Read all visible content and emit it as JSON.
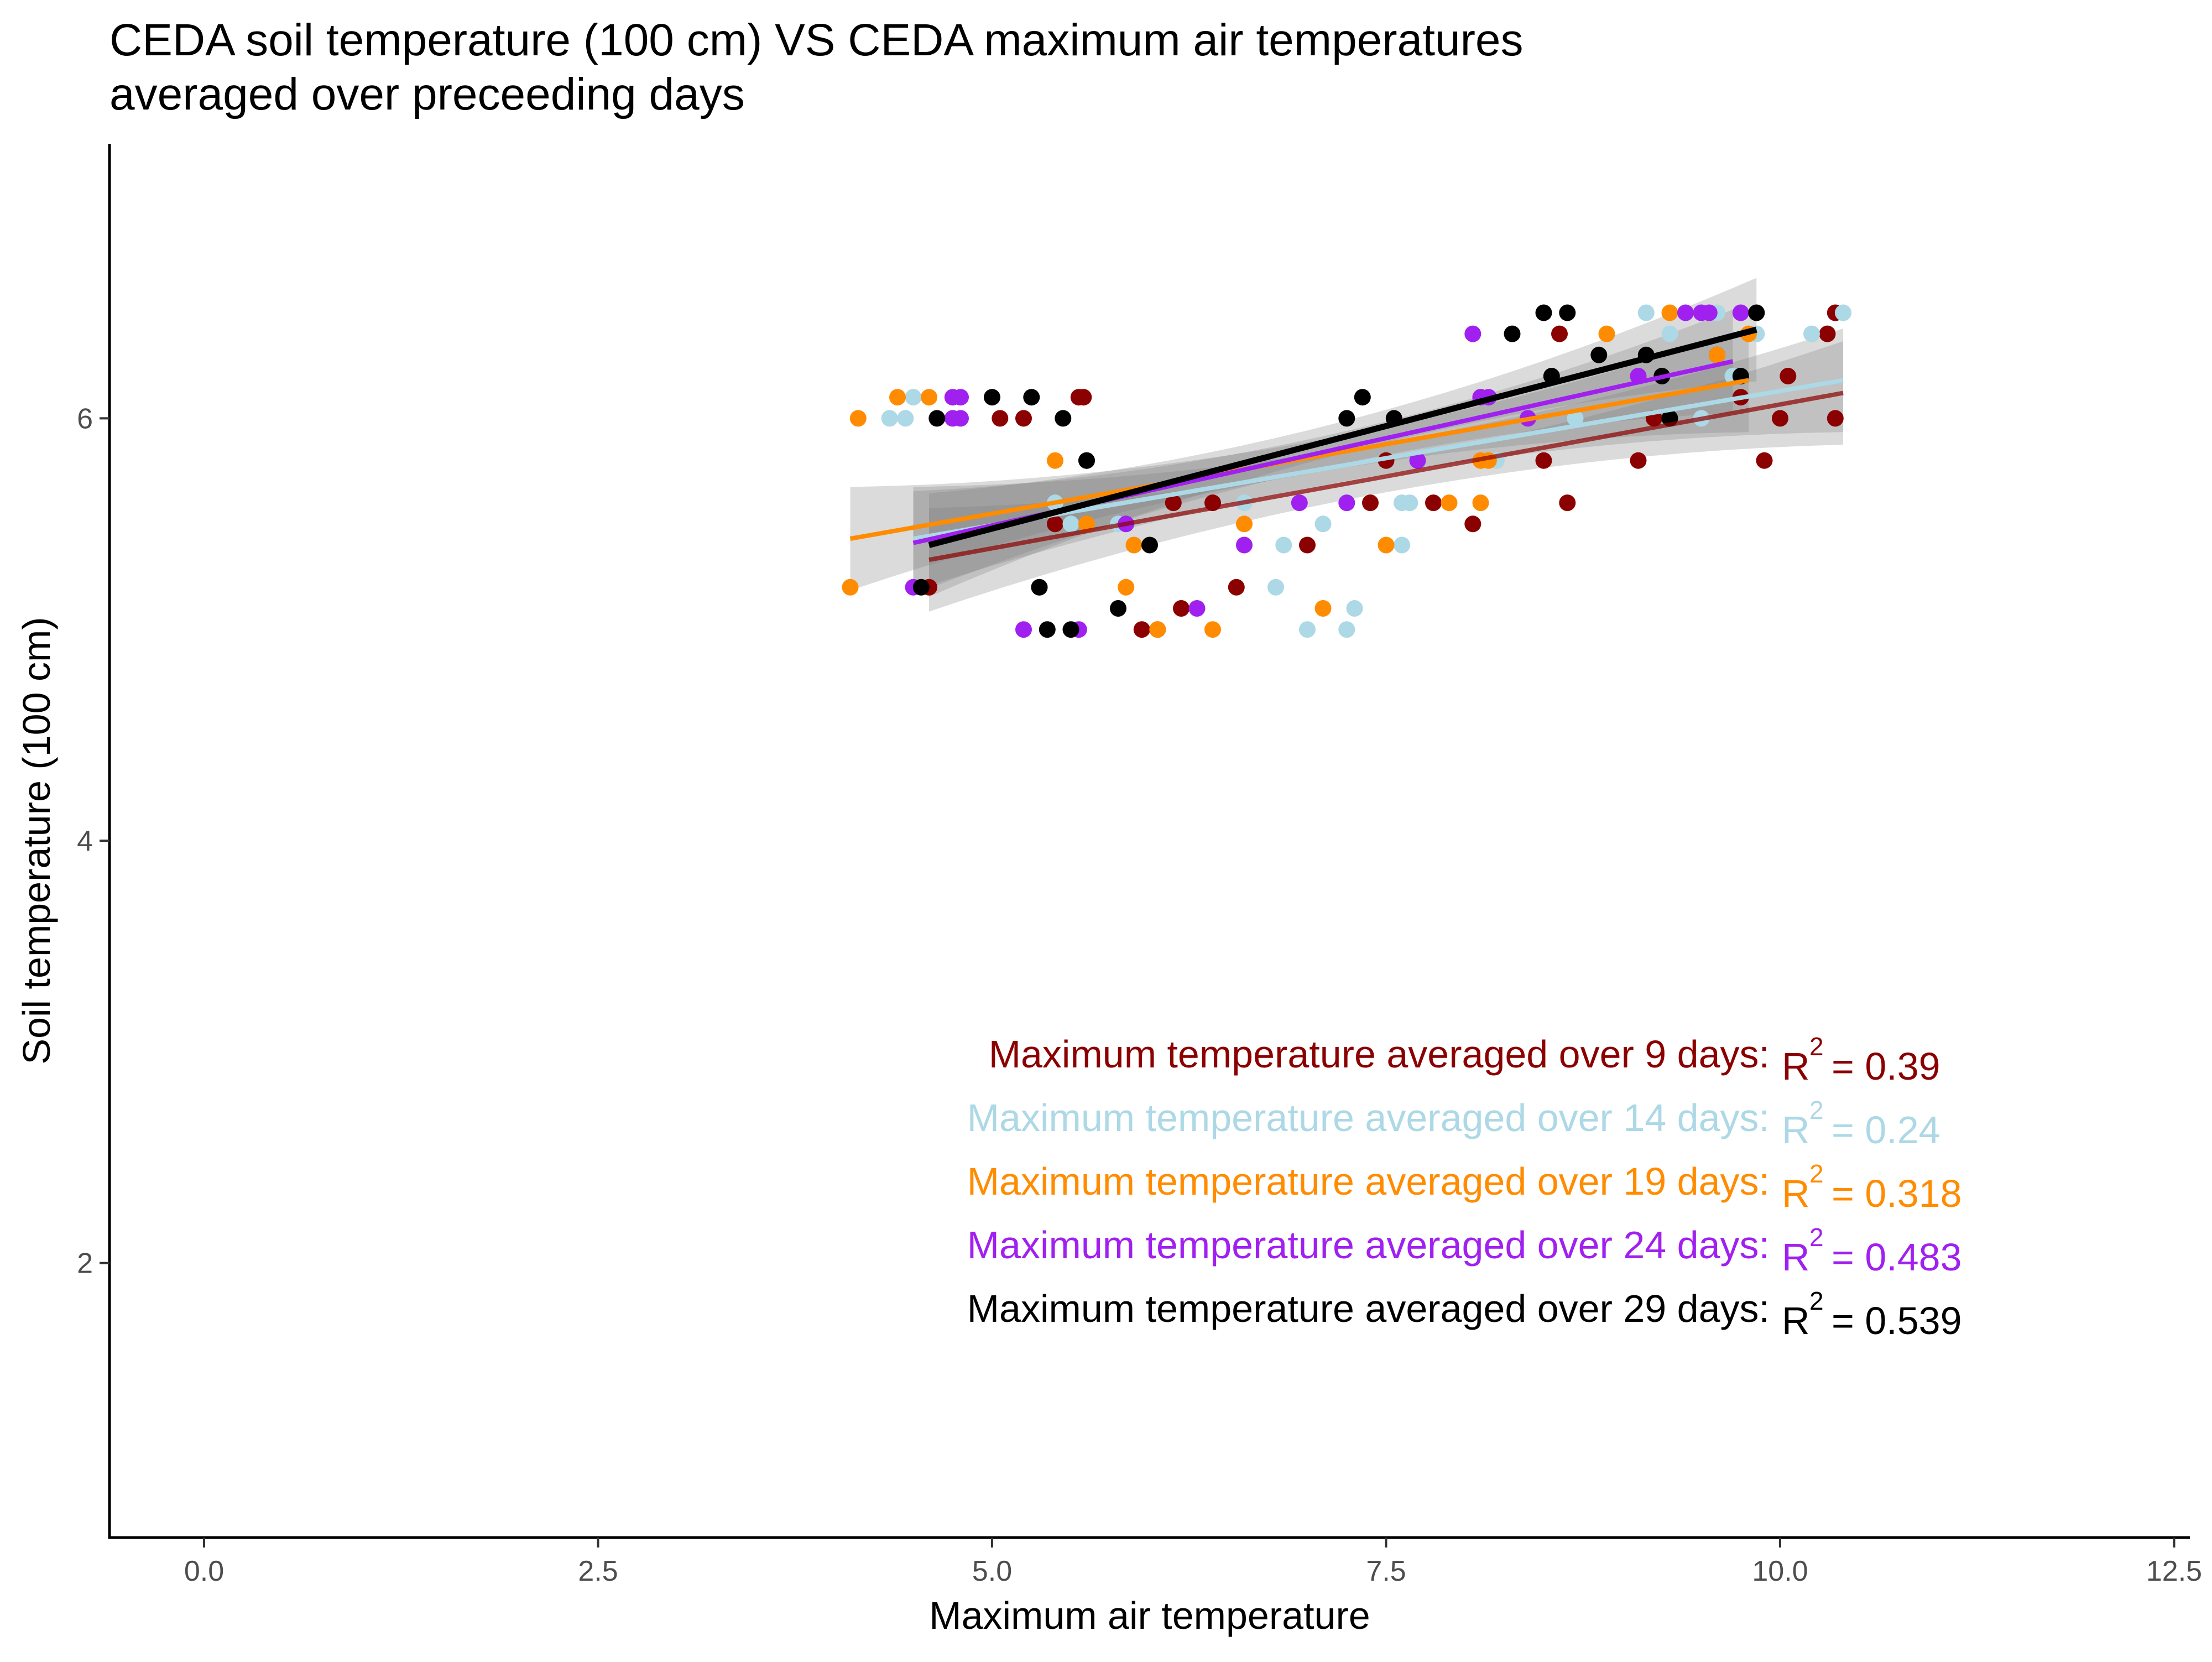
{
  "chart_data": {
    "type": "scatter",
    "title": "CEDA soil temperature (100 cm) VS CEDA maximum air temperatures",
    "subtitle": "averaged over preceeding days",
    "xlabel": "Maximum air temperature",
    "ylabel": "Soil temperature (100 cm)",
    "xlim": [
      -0.6,
      12.6
    ],
    "ylim": [
      0.7,
      7.3
    ],
    "x_ticks": [
      "0.0",
      "2.5",
      "5.0",
      "7.5",
      "10.0",
      "12.5"
    ],
    "x_tick_values": [
      0,
      2.5,
      5,
      7.5,
      10,
      12.5
    ],
    "y_ticks": [
      "2",
      "4",
      "6"
    ],
    "y_tick_values": [
      2,
      4,
      6
    ],
    "grid": false,
    "legend": "none",
    "series": [
      {
        "color": "#8B0000",
        "annotation_label": "Maximum temperature averaged over 9 days:",
        "r2_text": "= 0.39",
        "fit": {
          "x": [
            4.6,
            10.4
          ],
          "y": [
            5.33,
            6.12
          ]
        },
        "points": [
          [
            4.6,
            5.2
          ],
          [
            5.05,
            6.0
          ],
          [
            5.2,
            6.0
          ],
          [
            5.55,
            6.1
          ],
          [
            5.58,
            6.1
          ],
          [
            5.4,
            5.5
          ],
          [
            5.6,
            5.8
          ],
          [
            5.95,
            5.0
          ],
          [
            6.05,
            5.0
          ],
          [
            6.15,
            5.6
          ],
          [
            6.2,
            5.1
          ],
          [
            6.4,
            5.6
          ],
          [
            6.55,
            5.2
          ],
          [
            7.0,
            5.4
          ],
          [
            7.4,
            5.6
          ],
          [
            7.5,
            5.8
          ],
          [
            7.8,
            5.6
          ],
          [
            8.05,
            5.5
          ],
          [
            8.1,
            6.1
          ],
          [
            8.5,
            5.8
          ],
          [
            8.6,
            6.4
          ],
          [
            8.65,
            5.6
          ],
          [
            9.1,
            5.8
          ],
          [
            9.2,
            6.0
          ],
          [
            9.6,
            6.3
          ],
          [
            9.75,
            6.1
          ],
          [
            9.9,
            5.8
          ],
          [
            10.0,
            6.0
          ],
          [
            10.05,
            6.2
          ],
          [
            10.3,
            6.4
          ],
          [
            10.35,
            6.5
          ],
          [
            10.35,
            6.0
          ]
        ]
      },
      {
        "color": "#ADD8E6",
        "annotation_label": "Maximum temperature averaged over 14 days:",
        "r2_text": "= 0.24",
        "fit": {
          "x": [
            4.5,
            10.4
          ],
          "y": [
            5.43,
            6.18
          ]
        },
        "points": [
          [
            4.35,
            6.0
          ],
          [
            4.45,
            6.0
          ],
          [
            4.5,
            6.1
          ],
          [
            5.4,
            5.6
          ],
          [
            5.5,
            5.5
          ],
          [
            5.8,
            5.5
          ],
          [
            6.6,
            5.6
          ],
          [
            6.8,
            5.2
          ],
          [
            6.85,
            5.4
          ],
          [
            7.0,
            5.0
          ],
          [
            7.1,
            5.5
          ],
          [
            7.25,
            5.0
          ],
          [
            7.3,
            5.1
          ],
          [
            7.6,
            5.6
          ],
          [
            7.65,
            5.6
          ],
          [
            7.6,
            5.4
          ],
          [
            8.2,
            5.8
          ],
          [
            8.7,
            6.0
          ],
          [
            9.15,
            6.5
          ],
          [
            9.3,
            6.4
          ],
          [
            9.5,
            6.0
          ],
          [
            9.6,
            6.5
          ],
          [
            9.7,
            6.2
          ],
          [
            9.85,
            6.4
          ],
          [
            10.2,
            6.4
          ],
          [
            10.4,
            6.5
          ]
        ]
      },
      {
        "color": "#FF8C00",
        "annotation_label": "Maximum temperature averaged over 19 days:",
        "r2_text": "= 0.318",
        "fit": {
          "x": [
            4.1,
            9.8
          ],
          "y": [
            5.43,
            6.18
          ]
        },
        "points": [
          [
            4.1,
            5.2
          ],
          [
            4.15,
            6.0
          ],
          [
            4.4,
            6.1
          ],
          [
            4.6,
            6.1
          ],
          [
            5.4,
            5.8
          ],
          [
            5.6,
            5.5
          ],
          [
            5.85,
            5.2
          ],
          [
            5.9,
            5.4
          ],
          [
            6.05,
            5.0
          ],
          [
            6.4,
            5.0
          ],
          [
            6.6,
            5.5
          ],
          [
            7.1,
            5.1
          ],
          [
            7.5,
            5.4
          ],
          [
            7.9,
            5.6
          ],
          [
            8.1,
            5.6
          ],
          [
            8.1,
            5.8
          ],
          [
            8.15,
            5.8
          ],
          [
            8.9,
            6.4
          ],
          [
            9.3,
            6.5
          ],
          [
            9.6,
            6.3
          ],
          [
            9.8,
            6.4
          ]
        ]
      },
      {
        "color": "#A020F0",
        "annotation_label": "Maximum temperature averaged over 24 days:",
        "r2_text": "= 0.483",
        "fit": {
          "x": [
            4.5,
            9.7
          ],
          "y": [
            5.41,
            6.27
          ]
        },
        "points": [
          [
            4.5,
            5.2
          ],
          [
            4.75,
            6.1
          ],
          [
            4.8,
            6.1
          ],
          [
            4.75,
            6.0
          ],
          [
            4.8,
            6.0
          ],
          [
            5.2,
            5.0
          ],
          [
            5.3,
            5.2
          ],
          [
            5.55,
            5.0
          ],
          [
            5.85,
            5.5
          ],
          [
            6.3,
            5.1
          ],
          [
            6.6,
            5.4
          ],
          [
            6.95,
            5.6
          ],
          [
            7.25,
            5.6
          ],
          [
            7.7,
            5.8
          ],
          [
            8.05,
            6.4
          ],
          [
            8.1,
            6.1
          ],
          [
            8.15,
            6.1
          ],
          [
            8.4,
            6.0
          ],
          [
            9.1,
            6.2
          ],
          [
            9.4,
            6.5
          ],
          [
            9.5,
            6.5
          ],
          [
            9.55,
            6.5
          ],
          [
            9.75,
            6.5
          ]
        ]
      },
      {
        "color": "#000000",
        "annotation_label": "Maximum temperature averaged over 29 days:",
        "r2_text": "= 0.539",
        "fit": {
          "x": [
            4.6,
            9.85
          ],
          "y": [
            5.4,
            6.42
          ]
        },
        "points": [
          [
            4.55,
            5.2
          ],
          [
            4.65,
            6.0
          ],
          [
            5.0,
            6.1
          ],
          [
            5.25,
            6.1
          ],
          [
            5.3,
            5.2
          ],
          [
            5.35,
            5.0
          ],
          [
            5.45,
            6.0
          ],
          [
            5.5,
            5.0
          ],
          [
            5.6,
            5.8
          ],
          [
            5.8,
            5.1
          ],
          [
            6.0,
            5.4
          ],
          [
            7.25,
            6.0
          ],
          [
            7.35,
            6.1
          ],
          [
            7.55,
            6.0
          ],
          [
            8.3,
            6.4
          ],
          [
            8.5,
            6.5
          ],
          [
            8.55,
            6.2
          ],
          [
            8.65,
            6.5
          ],
          [
            8.85,
            6.3
          ],
          [
            9.15,
            6.3
          ],
          [
            9.25,
            6.2
          ],
          [
            9.3,
            6.0
          ],
          [
            9.75,
            6.2
          ],
          [
            9.85,
            6.5
          ]
        ]
      }
    ]
  }
}
